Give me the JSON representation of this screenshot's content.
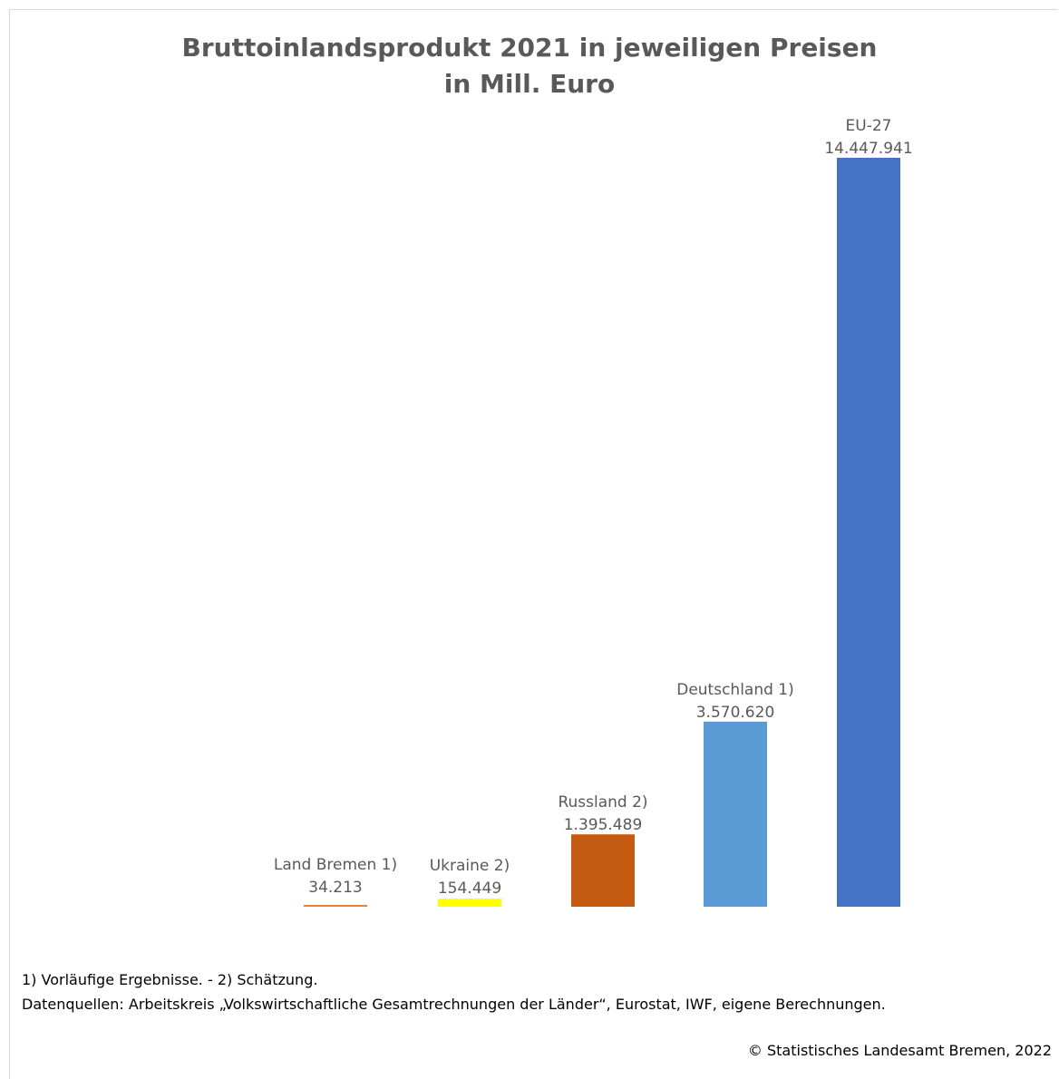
{
  "chart_data": {
    "type": "bar",
    "title": "Bruttoinlandsprodukt 2021 in jeweiligen Preisen",
    "subtitle": "in Mill. Euro",
    "categories": [
      "Land Bremen 1)",
      "Ukraine 2)",
      "Russland 2)",
      "Deutschland 1)",
      "EU-27"
    ],
    "values": [
      34213,
      154449,
      1395489,
      3570620,
      14447941
    ],
    "value_labels": [
      "34.213",
      "154.449",
      "1.395.489",
      "3.570.620",
      "14.447.941"
    ],
    "colors": [
      "#ED7D31",
      "#FFFF00",
      "#C55A11",
      "#5B9BD5",
      "#4472C4"
    ],
    "xlabel": "",
    "ylabel": "",
    "ylim": [
      0,
      14447941
    ],
    "grid": false,
    "legend": "none"
  },
  "footnotes": {
    "line1": "1) Vorläufige Ergebnisse. - 2) Schätzung.",
    "line2": "Datenquellen: Arbeitskreis „Volkswirtschaftliche Gesamtrechnungen der Länder“, Eurostat, IWF, eigene Berechnungen."
  },
  "copyright": "© Statistisches Landesamt Bremen, 2022"
}
